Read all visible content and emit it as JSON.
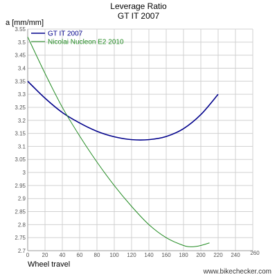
{
  "chart_data": {
    "type": "line",
    "title": "Leverage Ratio",
    "subtitle": "GT IT 2007",
    "ylabel": "a [mm/mm]",
    "xlabel": "Wheel travel",
    "x_axis_end_label": "260",
    "watermark": "www.bikechecker.com",
    "xlim": [
      0,
      260
    ],
    "ylim": [
      2.7,
      3.55
    ],
    "x_ticks": [
      0,
      20,
      40,
      60,
      80,
      100,
      120,
      140,
      160,
      180,
      200,
      220,
      240
    ],
    "y_ticks": [
      2.7,
      2.75,
      2.8,
      2.85,
      2.9,
      2.95,
      3.0,
      3.05,
      3.1,
      3.15,
      3.2,
      3.25,
      3.3,
      3.35,
      3.4,
      3.45,
      3.5,
      3.55
    ],
    "grid": true,
    "legend_position": "top-left",
    "series": [
      {
        "name": "GT IT 2007",
        "color": "#00008b",
        "x": [
          0,
          20,
          40,
          60,
          80,
          100,
          120,
          140,
          160,
          180,
          200,
          220
        ],
        "y": [
          3.35,
          3.285,
          3.23,
          3.19,
          3.158,
          3.137,
          3.126,
          3.126,
          3.138,
          3.168,
          3.222,
          3.3
        ]
      },
      {
        "name": "Nicolai Nucleon E2 2010",
        "color": "#228b22",
        "x": [
          0,
          20,
          40,
          60,
          80,
          100,
          120,
          140,
          160,
          180,
          190,
          200,
          210
        ],
        "y": [
          3.52,
          3.38,
          3.25,
          3.14,
          3.04,
          2.95,
          2.87,
          2.8,
          2.75,
          2.72,
          2.715,
          2.72,
          2.73
        ]
      }
    ]
  }
}
